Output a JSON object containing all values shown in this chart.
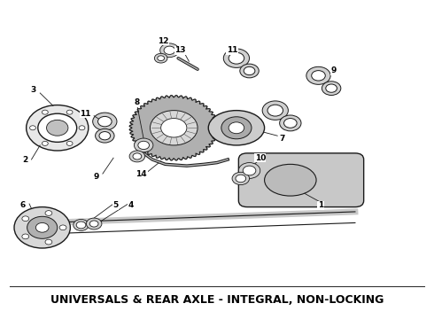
{
  "title": "UNIVERSALS & REAR AXLE - INTEGRAL, NON-LOCKING",
  "title_fontsize": 9,
  "title_fontweight": "bold",
  "background_color": "#ffffff",
  "text_color": "#000000",
  "figsize": [
    4.9,
    3.6
  ],
  "dpi": 100,
  "edge_color": "#1a1a1a"
}
